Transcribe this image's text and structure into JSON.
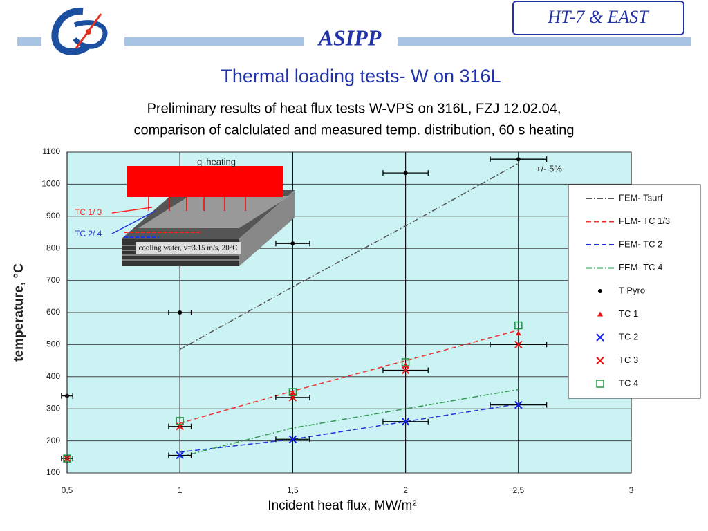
{
  "header": {
    "org": "ASIPP",
    "badge": "HT-7 & EAST"
  },
  "chart_data": {
    "type": "scatter",
    "title": "Thermal loading tests- W on 316L",
    "subtitle": [
      "Preliminary results of heat flux tests W-VPS on 316L, FZJ 12.02.04,",
      "comparison of calclulated and measured temp. distribution, 60 s heating"
    ],
    "x_label": "Incident heat flux, MW/m²",
    "y_label": "temperature, °C",
    "annotation": "+/- 5%",
    "xlim": [
      0.5,
      3
    ],
    "ylim": [
      100,
      1100
    ],
    "xticks": [
      {
        "value": 0.5,
        "label": "0,5"
      },
      1,
      {
        "value": 1.5,
        "label": "1,5"
      },
      2,
      {
        "value": 2.5,
        "label": "2,5"
      },
      3
    ],
    "yticks": [
      100,
      200,
      300,
      400,
      500,
      600,
      700,
      800,
      900,
      1000,
      1100
    ],
    "grid": true,
    "legend": "right",
    "series": [
      {
        "name": "FEM- Tsurf",
        "kind": "line",
        "dash": "dash-dot",
        "color": "#555555",
        "x": [
          1,
          1.5,
          2,
          2.5
        ],
        "values": [
          485,
          680,
          870,
          1065
        ]
      },
      {
        "name": "FEM- TC 1/3",
        "kind": "line",
        "dash": "dash",
        "color": "#ee3333",
        "x": [
          1,
          1.5,
          2,
          2.5
        ],
        "values": [
          255,
          355,
          450,
          545
        ]
      },
      {
        "name": "FEM- TC 2",
        "kind": "line",
        "dash": "dash",
        "color": "#2233dd",
        "x": [
          1,
          1.5,
          2,
          2.5
        ],
        "values": [
          165,
          205,
          260,
          315
        ]
      },
      {
        "name": "FEM- TC 4",
        "kind": "line",
        "dash": "dash-dot",
        "color": "#339955",
        "x": [
          1,
          1.5,
          2,
          2.5
        ],
        "values": [
          150,
          240,
          300,
          360
        ]
      },
      {
        "name": "T Pyro",
        "kind": "dot",
        "color": "#000000",
        "x": [
          0.5,
          1,
          1.5,
          2,
          2.5
        ],
        "values": [
          340,
          600,
          815,
          1035,
          1078
        ],
        "xerr": [
          0.025,
          0.05,
          0.075,
          0.1,
          0.125
        ]
      },
      {
        "name": "TC 1",
        "kind": "triangle",
        "color": "#ee1111",
        "x": [
          0.5,
          1,
          1.5,
          2,
          2.5
        ],
        "values": [
          145,
          250,
          350,
          435,
          535
        ]
      },
      {
        "name": "TC 2",
        "kind": "cross",
        "color": "#1122ee",
        "x": [
          1,
          1.5,
          2,
          2.5
        ],
        "values": [
          155,
          205,
          260,
          312
        ],
        "xerr": [
          0.05,
          0.075,
          0.1,
          0.125
        ]
      },
      {
        "name": "TC 3",
        "kind": "cross",
        "color": "#ee1111",
        "x": [
          0.5,
          1,
          1.5,
          2,
          2.5
        ],
        "values": [
          145,
          245,
          335,
          420,
          500
        ],
        "xerr": [
          0.025,
          0.05,
          0.075,
          0.1,
          0.125
        ]
      },
      {
        "name": "TC 4",
        "kind": "square",
        "color": "#229944",
        "x": [
          0.5,
          1,
          1.5,
          2,
          2.5
        ],
        "values": [
          145,
          262,
          352,
          445,
          560
        ]
      }
    ]
  },
  "inset": {
    "heating": "q' heating",
    "tc13": "TC 1/ 3",
    "tc24": "TC 2/ 4",
    "cooling": "cooling water, v=3.15 m/s, 20°C"
  }
}
